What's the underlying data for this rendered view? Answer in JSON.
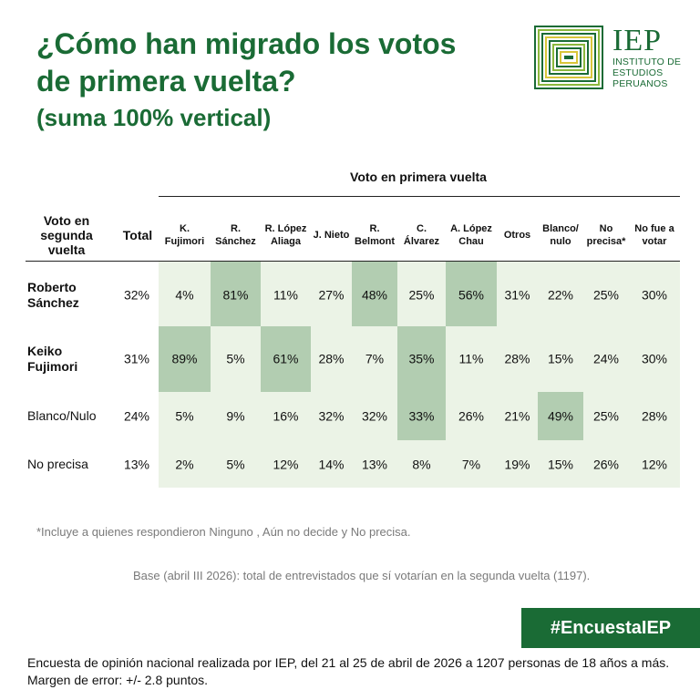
{
  "title": {
    "line1": "¿Cómo han migrado los votos",
    "line2": "de primera vuelta?",
    "line3": "(suma 100% vertical)"
  },
  "logo": {
    "short": "IEP",
    "line1": "INSTITUTO DE",
    "line2": "ESTUDIOS",
    "line3": "PERUANOS"
  },
  "colors": {
    "brand_green": "#1a6b35",
    "table_bg": "#ebf3e6",
    "highlight": "#b2cdb1"
  },
  "chart_data": {
    "type": "table",
    "column_group": "Voto en primera vuelta",
    "row_header": "Voto en segunda vuelta",
    "total_header": "Total",
    "columns": [
      "K. Fujimori",
      "R. Sánchez",
      "R. López Aliaga",
      "J. Nieto",
      "R. Belmont",
      "C. Álvarez",
      "A. López Chau",
      "Otros",
      "Blanco/ nulo",
      "No precisa*",
      "No fue a votar"
    ],
    "rows": [
      {
        "label": "Roberto Sánchez",
        "total": "32%",
        "values": [
          "4%",
          "81%",
          "11%",
          "27%",
          "48%",
          "25%",
          "56%",
          "31%",
          "22%",
          "25%",
          "30%"
        ],
        "highlight": [
          1,
          4,
          6
        ]
      },
      {
        "label": "Keiko Fujimori",
        "total": "31%",
        "values": [
          "89%",
          "5%",
          "61%",
          "28%",
          "7%",
          "35%",
          "11%",
          "28%",
          "15%",
          "24%",
          "30%"
        ],
        "highlight": [
          0,
          2,
          5
        ]
      },
      {
        "label": "Blanco/Nulo",
        "total": "24%",
        "values": [
          "5%",
          "9%",
          "16%",
          "32%",
          "32%",
          "33%",
          "26%",
          "21%",
          "49%",
          "25%",
          "28%"
        ],
        "highlight": [
          5,
          8
        ]
      },
      {
        "label": "No precisa",
        "total": "13%",
        "values": [
          "2%",
          "5%",
          "12%",
          "14%",
          "13%",
          "8%",
          "7%",
          "19%",
          "15%",
          "26%",
          "12%"
        ],
        "highlight": []
      }
    ]
  },
  "footnote": "*Incluye a quienes respondieron Ninguno , Aún no decide y No precisa.",
  "base": "Base (abril III 2026): total de entrevistados que sí votarían en la segunda vuelta (1197).",
  "hashtag": "#EncuestaIEP",
  "survey_note": "Encuesta de opinión nacional realizada por IEP, del 21 al 25 de abril de 2026 a 1207 personas de 18 años a más. Margen de error: +/- 2.8 puntos."
}
